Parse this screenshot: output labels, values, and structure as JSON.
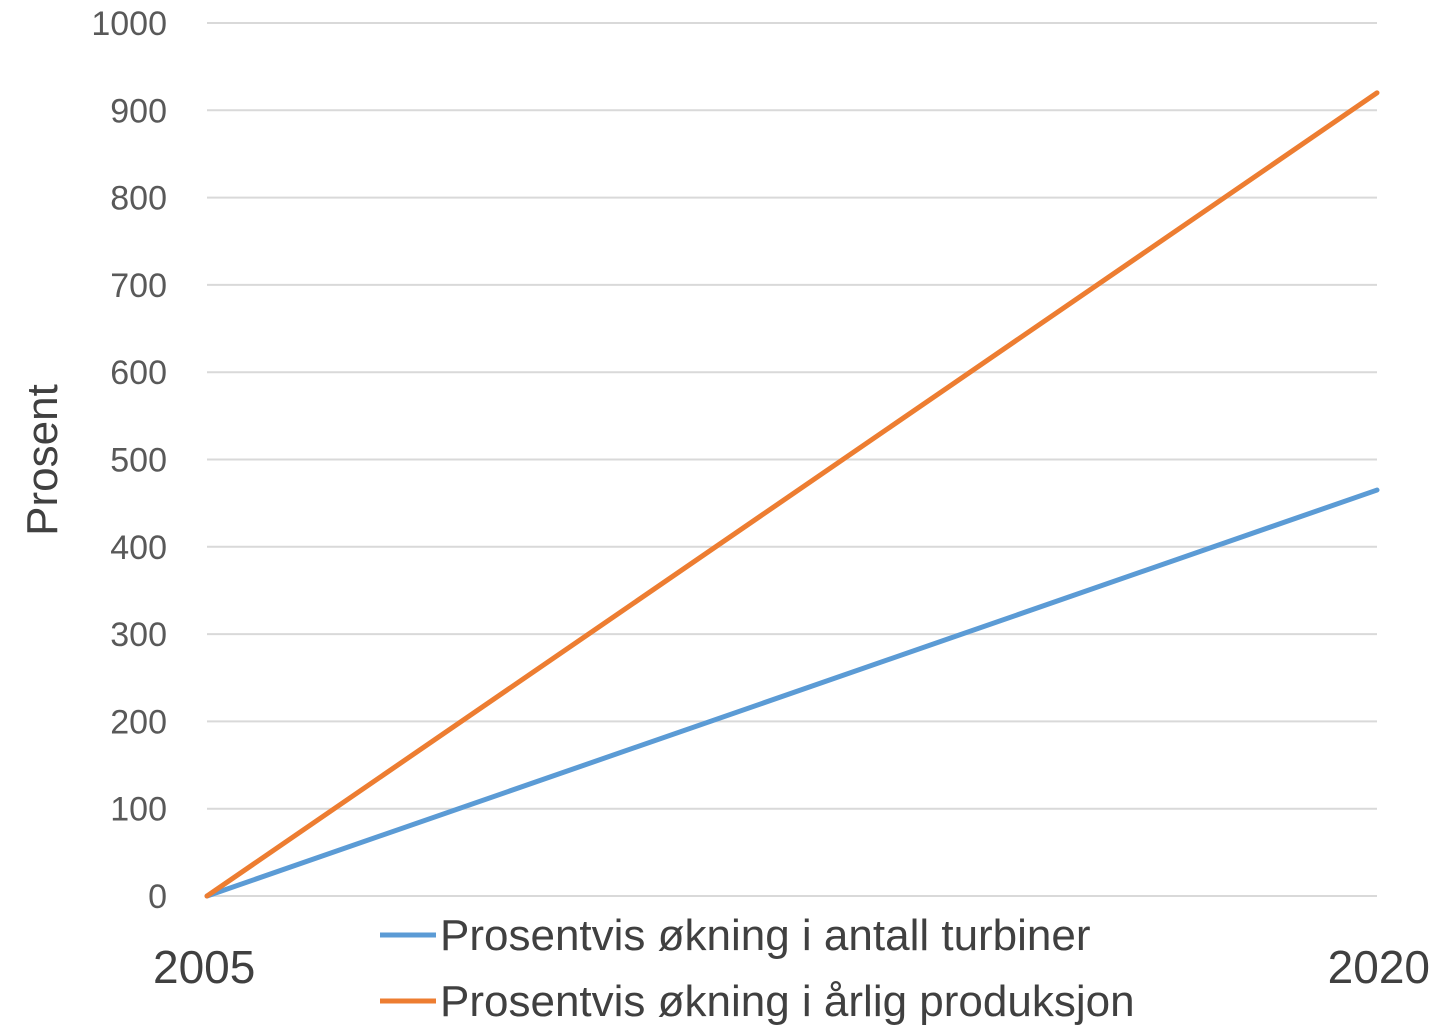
{
  "chart_data": {
    "type": "line",
    "title": "",
    "xlabel": "",
    "ylabel": "Prosent",
    "x": [
      "2005",
      "2020"
    ],
    "ylim": [
      0,
      1000
    ],
    "yticks": [
      "0",
      "100",
      "200",
      "300",
      "400",
      "500",
      "600",
      "700",
      "800",
      "900",
      "1000"
    ],
    "grid": true,
    "legend_position": "bottom",
    "series": [
      {
        "name": "Prosentvis økning i antall turbiner",
        "values": [
          0,
          465
        ],
        "color": "#5B9BD5"
      },
      {
        "name": "Prosentvis økning i årlig produksjon",
        "values": [
          0,
          920
        ],
        "color": "#ED7D31"
      }
    ]
  }
}
